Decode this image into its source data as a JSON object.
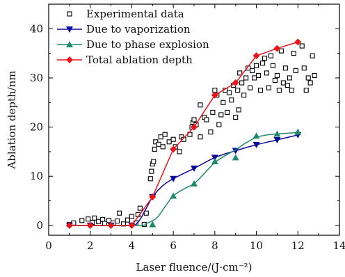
{
  "chart_data": {
    "type": "scatter",
    "title": "",
    "xlabel": "Laser fluence/(J·cm⁻²)",
    "ylabel": "Ablation depth/nm",
    "xlim": [
      0,
      14
    ],
    "ylim": [
      -2,
      45
    ],
    "xticks": [
      0,
      2,
      4,
      6,
      8,
      10,
      12,
      14
    ],
    "xtick_labels": [
      "0",
      "2",
      "4",
      "6",
      "8",
      "10",
      "12",
      "14"
    ],
    "yticks": [
      0,
      10,
      20,
      30,
      40
    ],
    "ytick_labels": [
      "0",
      "10",
      "20",
      "30",
      "40"
    ],
    "grid": false,
    "legend_position": "top-left",
    "series": [
      {
        "name": "Experimental data",
        "marker": "open-square",
        "color": "#000000",
        "points": [
          [
            1.0,
            0.2
          ],
          [
            1.2,
            0.5
          ],
          [
            1.6,
            1.0
          ],
          [
            1.9,
            1.3
          ],
          [
            2.1,
            0.6
          ],
          [
            2.2,
            1.5
          ],
          [
            2.4,
            0.8
          ],
          [
            2.6,
            1.2
          ],
          [
            2.7,
            0.4
          ],
          [
            2.9,
            1.0
          ],
          [
            3.1,
            0.5
          ],
          [
            3.3,
            0.9
          ],
          [
            3.4,
            2.5
          ],
          [
            3.6,
            0.3
          ],
          [
            3.8,
            1.1
          ],
          [
            4.0,
            1.8
          ],
          [
            4.2,
            0.5
          ],
          [
            4.3,
            2.2
          ],
          [
            4.4,
            3.5
          ],
          [
            4.6,
            0.2
          ],
          [
            4.7,
            2.5
          ],
          [
            4.9,
            9.5
          ],
          [
            4.95,
            11.0
          ],
          [
            5.0,
            12.5
          ],
          [
            5.05,
            13.0
          ],
          [
            5.1,
            15.5
          ],
          [
            5.15,
            17.0
          ],
          [
            5.3,
            16.5
          ],
          [
            5.4,
            18.0
          ],
          [
            5.5,
            16.0
          ],
          [
            5.6,
            18.5
          ],
          [
            5.8,
            17.0
          ],
          [
            6.0,
            17.5
          ],
          [
            6.1,
            16.0
          ],
          [
            6.3,
            15.0
          ],
          [
            6.4,
            18.0
          ],
          [
            6.5,
            17.5
          ],
          [
            6.8,
            18.5
          ],
          [
            6.9,
            20.0
          ],
          [
            6.95,
            21.0
          ],
          [
            7.0,
            21.5
          ],
          [
            7.1,
            20.5
          ],
          [
            7.3,
            18.0
          ],
          [
            7.3,
            24.5
          ],
          [
            7.5,
            22.0
          ],
          [
            7.6,
            21.5
          ],
          [
            7.8,
            19.0
          ],
          [
            7.9,
            23.0
          ],
          [
            8.0,
            27.5
          ],
          [
            8.1,
            26.5
          ],
          [
            8.2,
            20.5
          ],
          [
            8.3,
            22.5
          ],
          [
            8.4,
            25.0
          ],
          [
            8.5,
            27.5
          ],
          [
            8.6,
            23.0
          ],
          [
            8.7,
            27.0
          ],
          [
            8.8,
            25.5
          ],
          [
            8.9,
            28.5
          ],
          [
            9.0,
            22.0
          ],
          [
            9.1,
            27.5
          ],
          [
            9.15,
            23.5
          ],
          [
            9.2,
            31.0
          ],
          [
            9.3,
            29.0
          ],
          [
            9.4,
            26.5
          ],
          [
            9.5,
            30.0
          ],
          [
            9.6,
            32.0
          ],
          [
            9.7,
            28.0
          ],
          [
            9.8,
            31.5
          ],
          [
            9.9,
            30.0
          ],
          [
            10.0,
            32.5
          ],
          [
            10.1,
            30.5
          ],
          [
            10.2,
            27.5
          ],
          [
            10.3,
            33.0
          ],
          [
            10.4,
            34.0
          ],
          [
            10.5,
            31.0
          ],
          [
            10.6,
            28.0
          ],
          [
            10.7,
            34.5
          ],
          [
            10.8,
            32.5
          ],
          [
            10.9,
            29.5
          ],
          [
            11.0,
            30.5
          ],
          [
            11.1,
            27.5
          ],
          [
            11.2,
            35.5
          ],
          [
            11.3,
            29.0
          ],
          [
            11.4,
            32.0
          ],
          [
            11.5,
            28.5
          ],
          [
            11.6,
            30.0
          ],
          [
            11.7,
            27.5
          ],
          [
            11.8,
            35.0
          ],
          [
            11.9,
            31.5
          ],
          [
            12.2,
            36.5
          ],
          [
            12.3,
            32.0
          ],
          [
            12.4,
            27.5
          ],
          [
            12.5,
            30.0
          ],
          [
            12.6,
            29.0
          ],
          [
            12.7,
            34.5
          ],
          [
            12.8,
            30.5
          ]
        ]
      },
      {
        "name": "Due to vaporization",
        "marker": "filled-triangle-down",
        "color": "#0a0a9e",
        "points": [
          [
            1,
            0
          ],
          [
            2,
            0
          ],
          [
            3,
            0
          ],
          [
            4,
            0
          ],
          [
            5,
            5.8
          ],
          [
            6,
            9.5
          ],
          [
            7,
            11.6
          ],
          [
            8,
            13.8
          ],
          [
            9,
            15.2
          ],
          [
            10,
            16.4
          ],
          [
            11,
            17.4
          ],
          [
            12,
            18.4
          ]
        ],
        "curve": [
          [
            1,
            0
          ],
          [
            3.8,
            0
          ],
          [
            4.3,
            0.7
          ],
          [
            4.7,
            3.5
          ],
          [
            5,
            5.8
          ],
          [
            5.5,
            8.1
          ],
          [
            6,
            9.5
          ],
          [
            7,
            11.6
          ],
          [
            8,
            13.8
          ],
          [
            9,
            15.2
          ],
          [
            10,
            16.4
          ],
          [
            11,
            17.4
          ],
          [
            12,
            18.4
          ]
        ]
      },
      {
        "name": "Due to phase explosion",
        "marker": "filled-triangle-up",
        "color": "#1f8a6b",
        "points": [
          [
            5,
            0.2
          ],
          [
            6,
            6
          ],
          [
            7,
            8.5
          ],
          [
            8,
            13
          ],
          [
            9,
            13.8
          ],
          [
            10,
            18.2
          ],
          [
            11,
            18.6
          ],
          [
            12,
            19.0
          ]
        ],
        "curve": [
          [
            1,
            0
          ],
          [
            4.3,
            0
          ],
          [
            4.7,
            0.4
          ],
          [
            5.2,
            1.5
          ],
          [
            5.6,
            3.8
          ],
          [
            6,
            6.0
          ],
          [
            6.5,
            7.4
          ],
          [
            7,
            8.5
          ],
          [
            7.5,
            10.6
          ],
          [
            8,
            12.8
          ],
          [
            8.5,
            14.2
          ],
          [
            9,
            15.4
          ],
          [
            9.5,
            16.8
          ],
          [
            10,
            17.9
          ],
          [
            10.5,
            18.4
          ],
          [
            11,
            18.6
          ],
          [
            12,
            18.9
          ]
        ]
      },
      {
        "name": "Total ablation depth",
        "marker": "filled-diamond",
        "color": "#e8161c",
        "points": [
          [
            1,
            0
          ],
          [
            2,
            0
          ],
          [
            3,
            0
          ],
          [
            4,
            0
          ],
          [
            5,
            5.8
          ],
          [
            6,
            15.5
          ],
          [
            7,
            20
          ],
          [
            8,
            26.5
          ],
          [
            9,
            29
          ],
          [
            10,
            34.5
          ],
          [
            11,
            36
          ],
          [
            12,
            37.3
          ]
        ]
      }
    ]
  }
}
